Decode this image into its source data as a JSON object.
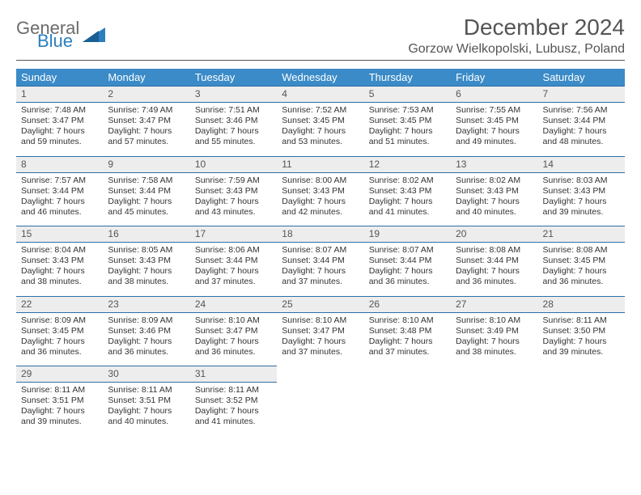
{
  "logo": {
    "general": "General",
    "blue": "Blue"
  },
  "header": {
    "title": "December 2024",
    "location": "Gorzow Wielkopolski, Lubusz, Poland"
  },
  "colors": {
    "header_bg": "#3b8bc8",
    "header_text": "#ffffff",
    "rule": "#2e6fa6",
    "daynum_bg": "#ededed",
    "text": "#333333",
    "logo_gray": "#6b6b6b",
    "logo_blue": "#2b7fbf"
  },
  "calendar": {
    "day_headers": [
      "Sunday",
      "Monday",
      "Tuesday",
      "Wednesday",
      "Thursday",
      "Friday",
      "Saturday"
    ],
    "weeks": [
      [
        {
          "n": "1",
          "sr": "Sunrise: 7:48 AM",
          "ss": "Sunset: 3:47 PM",
          "d1": "Daylight: 7 hours",
          "d2": "and 59 minutes."
        },
        {
          "n": "2",
          "sr": "Sunrise: 7:49 AM",
          "ss": "Sunset: 3:47 PM",
          "d1": "Daylight: 7 hours",
          "d2": "and 57 minutes."
        },
        {
          "n": "3",
          "sr": "Sunrise: 7:51 AM",
          "ss": "Sunset: 3:46 PM",
          "d1": "Daylight: 7 hours",
          "d2": "and 55 minutes."
        },
        {
          "n": "4",
          "sr": "Sunrise: 7:52 AM",
          "ss": "Sunset: 3:45 PM",
          "d1": "Daylight: 7 hours",
          "d2": "and 53 minutes."
        },
        {
          "n": "5",
          "sr": "Sunrise: 7:53 AM",
          "ss": "Sunset: 3:45 PM",
          "d1": "Daylight: 7 hours",
          "d2": "and 51 minutes."
        },
        {
          "n": "6",
          "sr": "Sunrise: 7:55 AM",
          "ss": "Sunset: 3:45 PM",
          "d1": "Daylight: 7 hours",
          "d2": "and 49 minutes."
        },
        {
          "n": "7",
          "sr": "Sunrise: 7:56 AM",
          "ss": "Sunset: 3:44 PM",
          "d1": "Daylight: 7 hours",
          "d2": "and 48 minutes."
        }
      ],
      [
        {
          "n": "8",
          "sr": "Sunrise: 7:57 AM",
          "ss": "Sunset: 3:44 PM",
          "d1": "Daylight: 7 hours",
          "d2": "and 46 minutes."
        },
        {
          "n": "9",
          "sr": "Sunrise: 7:58 AM",
          "ss": "Sunset: 3:44 PM",
          "d1": "Daylight: 7 hours",
          "d2": "and 45 minutes."
        },
        {
          "n": "10",
          "sr": "Sunrise: 7:59 AM",
          "ss": "Sunset: 3:43 PM",
          "d1": "Daylight: 7 hours",
          "d2": "and 43 minutes."
        },
        {
          "n": "11",
          "sr": "Sunrise: 8:00 AM",
          "ss": "Sunset: 3:43 PM",
          "d1": "Daylight: 7 hours",
          "d2": "and 42 minutes."
        },
        {
          "n": "12",
          "sr": "Sunrise: 8:02 AM",
          "ss": "Sunset: 3:43 PM",
          "d1": "Daylight: 7 hours",
          "d2": "and 41 minutes."
        },
        {
          "n": "13",
          "sr": "Sunrise: 8:02 AM",
          "ss": "Sunset: 3:43 PM",
          "d1": "Daylight: 7 hours",
          "d2": "and 40 minutes."
        },
        {
          "n": "14",
          "sr": "Sunrise: 8:03 AM",
          "ss": "Sunset: 3:43 PM",
          "d1": "Daylight: 7 hours",
          "d2": "and 39 minutes."
        }
      ],
      [
        {
          "n": "15",
          "sr": "Sunrise: 8:04 AM",
          "ss": "Sunset: 3:43 PM",
          "d1": "Daylight: 7 hours",
          "d2": "and 38 minutes."
        },
        {
          "n": "16",
          "sr": "Sunrise: 8:05 AM",
          "ss": "Sunset: 3:43 PM",
          "d1": "Daylight: 7 hours",
          "d2": "and 38 minutes."
        },
        {
          "n": "17",
          "sr": "Sunrise: 8:06 AM",
          "ss": "Sunset: 3:44 PM",
          "d1": "Daylight: 7 hours",
          "d2": "and 37 minutes."
        },
        {
          "n": "18",
          "sr": "Sunrise: 8:07 AM",
          "ss": "Sunset: 3:44 PM",
          "d1": "Daylight: 7 hours",
          "d2": "and 37 minutes."
        },
        {
          "n": "19",
          "sr": "Sunrise: 8:07 AM",
          "ss": "Sunset: 3:44 PM",
          "d1": "Daylight: 7 hours",
          "d2": "and 36 minutes."
        },
        {
          "n": "20",
          "sr": "Sunrise: 8:08 AM",
          "ss": "Sunset: 3:44 PM",
          "d1": "Daylight: 7 hours",
          "d2": "and 36 minutes."
        },
        {
          "n": "21",
          "sr": "Sunrise: 8:08 AM",
          "ss": "Sunset: 3:45 PM",
          "d1": "Daylight: 7 hours",
          "d2": "and 36 minutes."
        }
      ],
      [
        {
          "n": "22",
          "sr": "Sunrise: 8:09 AM",
          "ss": "Sunset: 3:45 PM",
          "d1": "Daylight: 7 hours",
          "d2": "and 36 minutes."
        },
        {
          "n": "23",
          "sr": "Sunrise: 8:09 AM",
          "ss": "Sunset: 3:46 PM",
          "d1": "Daylight: 7 hours",
          "d2": "and 36 minutes."
        },
        {
          "n": "24",
          "sr": "Sunrise: 8:10 AM",
          "ss": "Sunset: 3:47 PM",
          "d1": "Daylight: 7 hours",
          "d2": "and 36 minutes."
        },
        {
          "n": "25",
          "sr": "Sunrise: 8:10 AM",
          "ss": "Sunset: 3:47 PM",
          "d1": "Daylight: 7 hours",
          "d2": "and 37 minutes."
        },
        {
          "n": "26",
          "sr": "Sunrise: 8:10 AM",
          "ss": "Sunset: 3:48 PM",
          "d1": "Daylight: 7 hours",
          "d2": "and 37 minutes."
        },
        {
          "n": "27",
          "sr": "Sunrise: 8:10 AM",
          "ss": "Sunset: 3:49 PM",
          "d1": "Daylight: 7 hours",
          "d2": "and 38 minutes."
        },
        {
          "n": "28",
          "sr": "Sunrise: 8:11 AM",
          "ss": "Sunset: 3:50 PM",
          "d1": "Daylight: 7 hours",
          "d2": "and 39 minutes."
        }
      ],
      [
        {
          "n": "29",
          "sr": "Sunrise: 8:11 AM",
          "ss": "Sunset: 3:51 PM",
          "d1": "Daylight: 7 hours",
          "d2": "and 39 minutes."
        },
        {
          "n": "30",
          "sr": "Sunrise: 8:11 AM",
          "ss": "Sunset: 3:51 PM",
          "d1": "Daylight: 7 hours",
          "d2": "and 40 minutes."
        },
        {
          "n": "31",
          "sr": "Sunrise: 8:11 AM",
          "ss": "Sunset: 3:52 PM",
          "d1": "Daylight: 7 hours",
          "d2": "and 41 minutes."
        },
        null,
        null,
        null,
        null
      ]
    ]
  }
}
